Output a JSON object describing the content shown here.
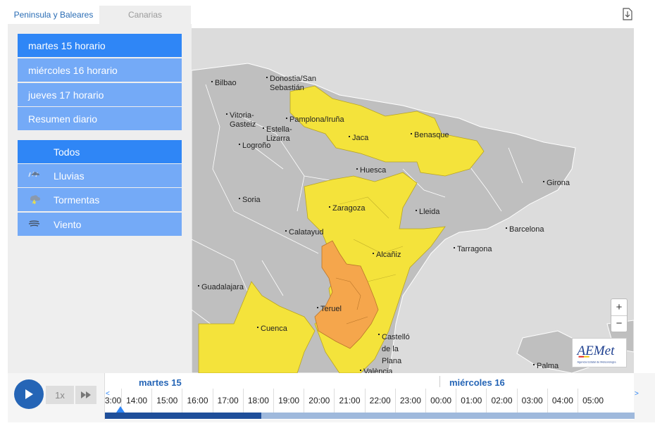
{
  "region_tabs": [
    {
      "label": "Peninsula y Baleares",
      "active": true
    },
    {
      "label": "Canarias",
      "active": false
    }
  ],
  "day_menu": [
    {
      "label": "martes 15 horario",
      "active": true
    },
    {
      "label": "miércoles 16 horario",
      "active": false
    },
    {
      "label": "jueves 17 horario",
      "active": false
    },
    {
      "label": "Resumen diario",
      "active": false
    }
  ],
  "filters": [
    {
      "label": "Todos",
      "icon": "none",
      "active": true
    },
    {
      "label": "Lluvias",
      "icon": "rain-icon",
      "active": false
    },
    {
      "label": "Tormentas",
      "icon": "storm-icon",
      "active": false
    },
    {
      "label": "Viento",
      "icon": "wind-icon",
      "active": false
    }
  ],
  "cities": [
    {
      "name": "Bilbao"
    },
    {
      "name": "Donostia/San Sebastián"
    },
    {
      "name": "Vitoria-Gasteiz"
    },
    {
      "name": "Pamplona/Iruña"
    },
    {
      "name": "Estella-Lizarra"
    },
    {
      "name": "Logroño"
    },
    {
      "name": "Jaca"
    },
    {
      "name": "Benasque"
    },
    {
      "name": "Huesca"
    },
    {
      "name": "Girona"
    },
    {
      "name": "Soria"
    },
    {
      "name": "Zaragoza"
    },
    {
      "name": "Lleida"
    },
    {
      "name": "Barcelona"
    },
    {
      "name": "Calatayud"
    },
    {
      "name": "Tarragona"
    },
    {
      "name": "Alcañiz"
    },
    {
      "name": "Guadalajara"
    },
    {
      "name": "Teruel"
    },
    {
      "name": "Cuenca"
    },
    {
      "name": "Castelló de la Plana"
    },
    {
      "name": "València"
    },
    {
      "name": "Palma"
    }
  ],
  "zoom": {
    "in_label": "+",
    "out_label": "−"
  },
  "logo": {
    "text": "AEMet",
    "subtext": "Agencia Estatal de Meteorología"
  },
  "timeline": {
    "speed": "1x",
    "days": [
      {
        "label": "martes 15"
      },
      {
        "label": "miércoles 16"
      }
    ],
    "hours": [
      "3:00",
      "14:00",
      "15:00",
      "16:00",
      "17:00",
      "18:00",
      "19:00",
      "20:00",
      "21:00",
      "22:00",
      "23:00",
      "00:00",
      "01:00",
      "02:00",
      "03:00",
      "04:00",
      "05:00"
    ],
    "progress": 0.295,
    "scroll_left": "<",
    "scroll_right": ">"
  },
  "colors": {
    "menu_active": "#2f86f6",
    "menu_inactive": "#74aaf7",
    "warning_yellow": "#f4e33b",
    "warning_orange": "#f5a64c",
    "day_label": "#2565b6"
  }
}
